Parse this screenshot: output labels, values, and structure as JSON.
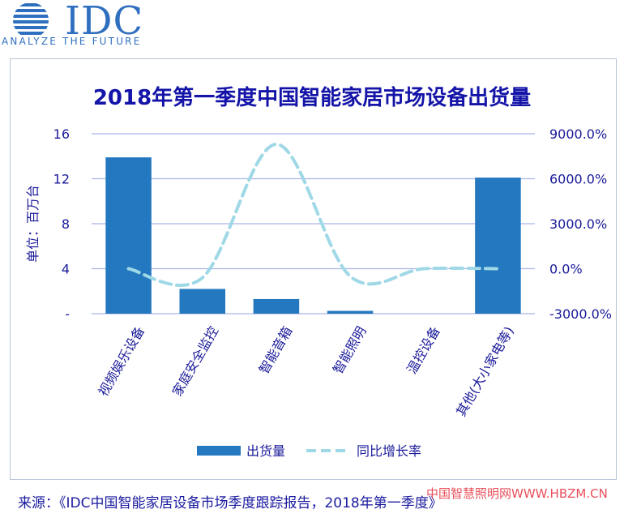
{
  "header": {
    "logo_text": "IDC",
    "tagline": "ANALYZE THE FUTURE"
  },
  "chart_data": {
    "type": "bar",
    "title": "2018年第一季度中国智能家居市场设备出货量",
    "ylabel": "单位：百万台",
    "categories": [
      "视频娱乐设备",
      "家庭安全监控",
      "智能音箱",
      "智能照明",
      "温控设备",
      "其他(大小家电等)"
    ],
    "series": [
      {
        "name": "出货量",
        "type": "bar",
        "axis": "left",
        "color": "#2478c0",
        "values": [
          13.9,
          2.2,
          1.3,
          0.25,
          0.0,
          12.1
        ]
      },
      {
        "name": "同比增长率",
        "type": "line",
        "axis": "right",
        "style": "dashed",
        "color": "#9fd8e6",
        "values": [
          0.0,
          -600.0,
          8300.0,
          -500.0,
          0.0,
          0.0
        ]
      }
    ],
    "ylim": [
      0,
      16
    ],
    "y2lim": [
      -3000,
      9000
    ],
    "yticks": [
      "-",
      "4",
      "8",
      "12",
      "16"
    ],
    "y2ticks": [
      "-3000.0%",
      "0.0%",
      "3000.0%",
      "6000.0%",
      "9000.0%"
    ],
    "grid": true,
    "legend_position": "bottom"
  },
  "footer": {
    "source": "来源：《IDC中国智能家居设备市场季度跟踪报告，2018年第一季度》",
    "watermark": "中国智慧照明网WWW.HBZM.CN"
  }
}
